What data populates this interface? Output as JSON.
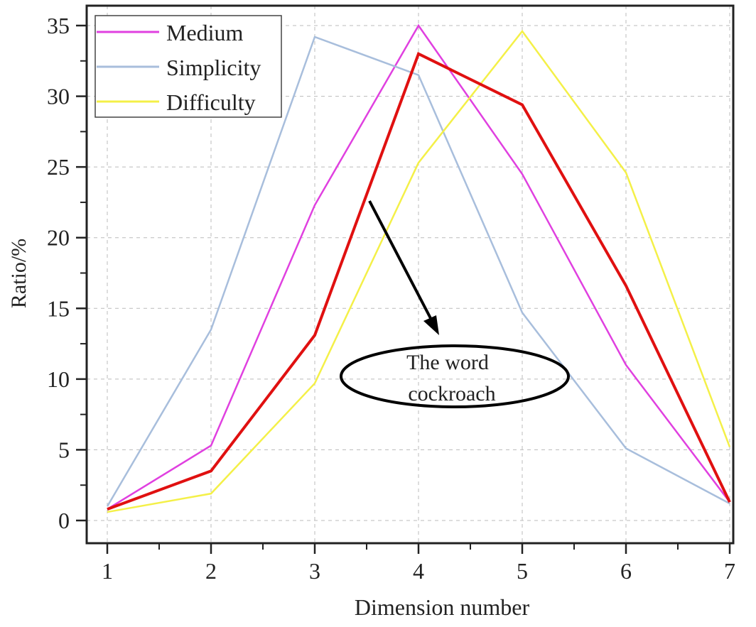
{
  "chart_data": {
    "type": "line",
    "title": "",
    "xlabel": "Dimension number",
    "ylabel": "Ratio/%",
    "xlim": [
      1,
      7
    ],
    "ylim": [
      0,
      35
    ],
    "x": [
      1,
      2,
      3,
      4,
      5,
      6,
      7
    ],
    "xticks": [
      "1",
      "2",
      "3",
      "4",
      "5",
      "6",
      "7"
    ],
    "yticks": [
      "0",
      "5",
      "10",
      "15",
      "20",
      "25",
      "30",
      "35"
    ],
    "grid": true,
    "legend_position": "top-left",
    "series": [
      {
        "name": "Medium",
        "color": "#e040e0",
        "values": [
          0.8,
          5.3,
          22.3,
          35.0,
          24.5,
          11.0,
          1.3
        ]
      },
      {
        "name": "Simplicity",
        "color": "#a8bedc",
        "values": [
          1.0,
          13.5,
          34.2,
          31.5,
          14.7,
          5.1,
          1.2
        ]
      },
      {
        "name": "Difficulty",
        "color": "#f4f048",
        "values": [
          0.6,
          1.9,
          9.7,
          25.3,
          34.6,
          24.6,
          5.2
        ]
      },
      {
        "color": "#e01010",
        "values": [
          0.8,
          3.5,
          13.1,
          33.0,
          29.4,
          16.6,
          1.3
        ]
      }
    ],
    "annotations": [
      {
        "text_line1": "The word",
        "text_line2": "cockroach",
        "points_to": [
          3.5,
          22.5
        ]
      }
    ]
  }
}
